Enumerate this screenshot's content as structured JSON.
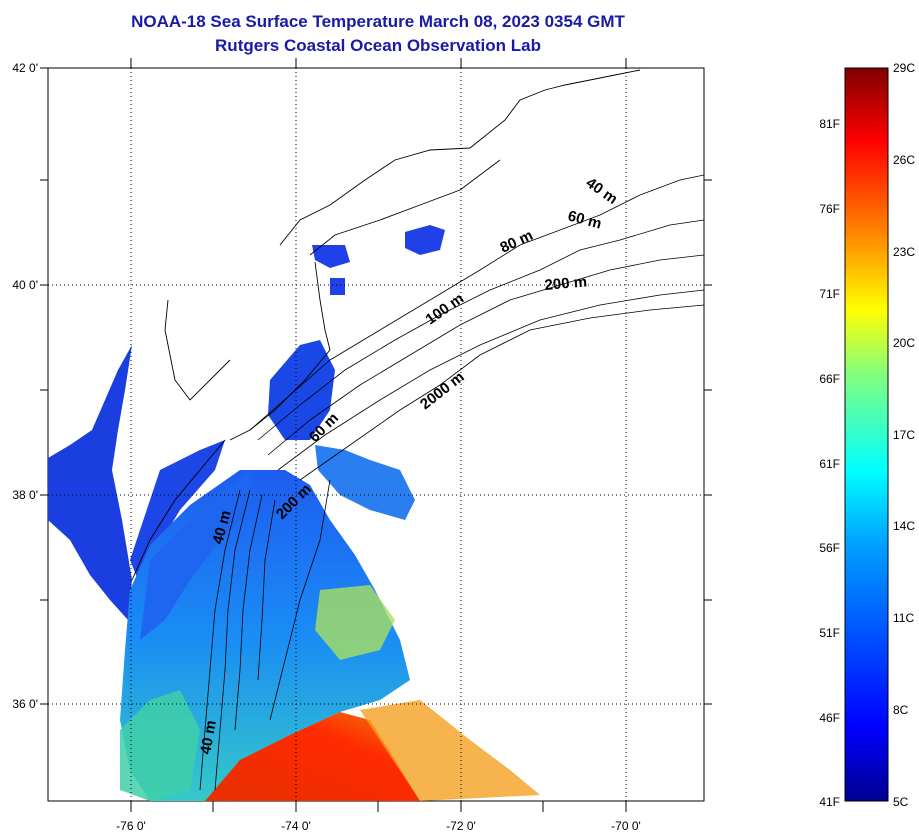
{
  "title": {
    "line1": "NOAA-18 Sea Surface Temperature March 08, 2023 0354 GMT",
    "line2": "Rutgers Coastal Ocean Observation Lab"
  },
  "map": {
    "lon_range": [
      -77,
      -69
    ],
    "lat_range": [
      35,
      42
    ],
    "x_ticks": [
      "-76 0'",
      "-74 0'",
      "-72 0'",
      "-70 0'"
    ],
    "y_ticks": [
      "42 0'",
      "40 0'",
      "38 0'",
      "36 0'"
    ],
    "contour_labels": [
      "40 m",
      "60 m",
      "80 m",
      "200 m",
      "100 m",
      "2000 m",
      "60 m",
      "200 m",
      "40 m",
      "40 m"
    ]
  },
  "colorbar": {
    "celsius": [
      "29C",
      "26C",
      "23C",
      "20C",
      "17C",
      "14C",
      "11C",
      "8C",
      "5C"
    ],
    "fahrenheit": [
      "81F",
      "76F",
      "71F",
      "66F",
      "61F",
      "56F",
      "51F",
      "46F",
      "41F"
    ],
    "colors": [
      "#00008f",
      "#0000ff",
      "#0080ff",
      "#00ffff",
      "#80ff80",
      "#ffff00",
      "#ff8000",
      "#ff0000",
      "#800000"
    ]
  }
}
